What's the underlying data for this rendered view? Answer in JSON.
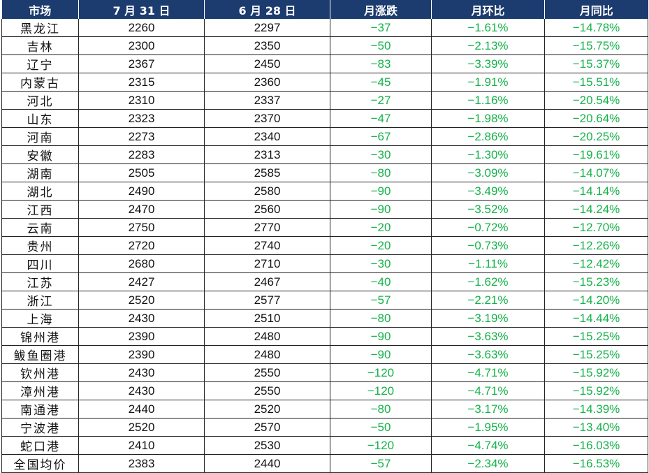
{
  "table": {
    "headers": [
      "市场",
      "7 月 31 日",
      "6 月 28 日",
      "月涨跌",
      "月环比",
      "月同比"
    ],
    "rows": [
      [
        "黑龙江",
        "2260",
        "2297",
        "−37",
        "−1.61%",
        "−14.78%"
      ],
      [
        "吉林",
        "2300",
        "2350",
        "−50",
        "−2.13%",
        "−15.75%"
      ],
      [
        "辽宁",
        "2367",
        "2450",
        "−83",
        "−3.39%",
        "−15.37%"
      ],
      [
        "内蒙古",
        "2315",
        "2360",
        "−45",
        "−1.91%",
        "−15.51%"
      ],
      [
        "河北",
        "2310",
        "2337",
        "−27",
        "−1.16%",
        "−20.54%"
      ],
      [
        "山东",
        "2323",
        "2370",
        "−47",
        "−1.98%",
        "−20.64%"
      ],
      [
        "河南",
        "2273",
        "2340",
        "−67",
        "−2.86%",
        "−20.25%"
      ],
      [
        "安徽",
        "2283",
        "2313",
        "−30",
        "−1.30%",
        "−19.61%"
      ],
      [
        "湖南",
        "2505",
        "2585",
        "−80",
        "−3.09%",
        "−14.07%"
      ],
      [
        "湖北",
        "2490",
        "2580",
        "−90",
        "−3.49%",
        "−14.14%"
      ],
      [
        "江西",
        "2470",
        "2560",
        "−90",
        "−3.52%",
        "−14.24%"
      ],
      [
        "云南",
        "2750",
        "2770",
        "−20",
        "−0.72%",
        "−12.70%"
      ],
      [
        "贵州",
        "2720",
        "2740",
        "−20",
        "−0.73%",
        "−12.26%"
      ],
      [
        "四川",
        "2680",
        "2710",
        "−30",
        "−1.11%",
        "−12.42%"
      ],
      [
        "江苏",
        "2427",
        "2467",
        "−40",
        "−1.62%",
        "−15.23%"
      ],
      [
        "浙江",
        "2520",
        "2577",
        "−57",
        "−2.21%",
        "−14.20%"
      ],
      [
        "上海",
        "2430",
        "2510",
        "−80",
        "−3.19%",
        "−14.44%"
      ],
      [
        "锦州港",
        "2390",
        "2480",
        "−90",
        "−3.63%",
        "−15.25%"
      ],
      [
        "鲅鱼圈港",
        "2390",
        "2480",
        "−90",
        "−3.63%",
        "−15.25%"
      ],
      [
        "钦州港",
        "2430",
        "2550",
        "−120",
        "−4.71%",
        "−15.92%"
      ],
      [
        "漳州港",
        "2430",
        "2550",
        "−120",
        "−4.71%",
        "−15.92%"
      ],
      [
        "南通港",
        "2440",
        "2520",
        "−80",
        "−3.17%",
        "−14.39%"
      ],
      [
        "宁波港",
        "2520",
        "2570",
        "−50",
        "−1.95%",
        "−13.40%"
      ],
      [
        "蛇口港",
        "2410",
        "2530",
        "−120",
        "−4.74%",
        "−16.03%"
      ],
      [
        "全国均价",
        "2383",
        "2440",
        "−57",
        "−2.34%",
        "−16.53%"
      ]
    ]
  },
  "colors": {
    "header_bg": "#1c3b6e",
    "header_text": "#ffffff",
    "negative": "#16b24a"
  }
}
